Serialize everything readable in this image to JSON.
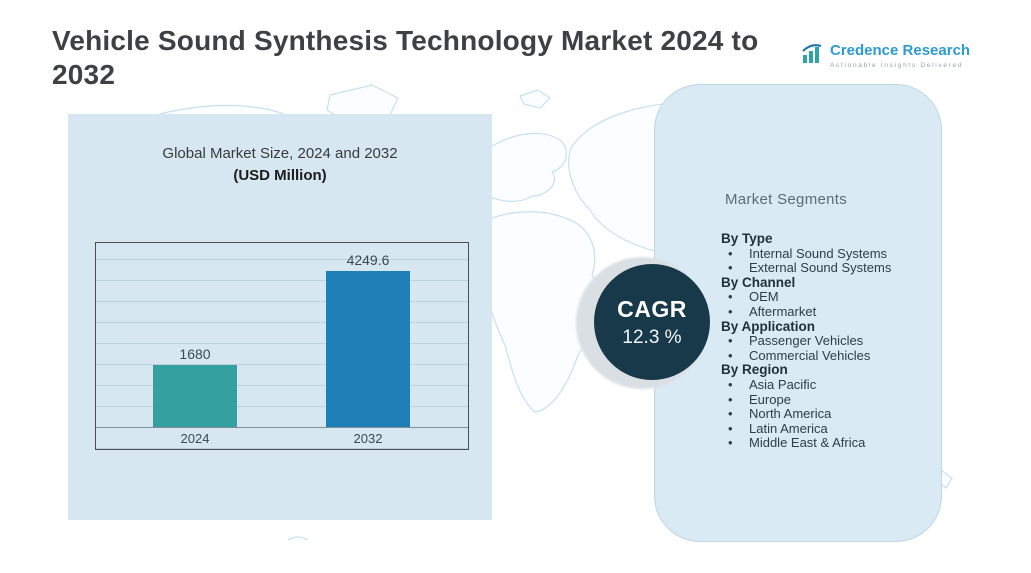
{
  "header": {
    "title": "Vehicle Sound Synthesis Technology Market  2024 to 2032",
    "brand": {
      "name": "Credence Research",
      "tagline": "Actionable Insights Delivered"
    }
  },
  "chart_data": {
    "type": "bar",
    "title": "Global Market Size, 2024 and 2032",
    "subtitle": "(USD Million)",
    "categories": [
      "2024",
      "2032"
    ],
    "values": [
      1680,
      4249.6
    ],
    "value_labels": [
      "1680",
      "4249.6"
    ],
    "ylim": [
      0,
      5000
    ],
    "bar_colors": [
      "#35A0A0",
      "#1F80B8"
    ],
    "grid": true,
    "legend": false,
    "xlabel": "",
    "ylabel": ""
  },
  "cagr": {
    "label": "CAGR",
    "value": "12.3 %"
  },
  "segments": {
    "title": "Market Segments",
    "groups": [
      {
        "label": "By Type",
        "items": [
          "Internal Sound Systems",
          "External Sound Systems"
        ]
      },
      {
        "label": "By  Channel",
        "items": [
          "OEM",
          "Aftermarket"
        ]
      },
      {
        "label": "By Application",
        "items": [
          "Passenger Vehicles",
          "Commercial Vehicles"
        ]
      },
      {
        "label": "By Region",
        "items": [
          "Asia Pacific",
          "Europe",
          "North America",
          "Latin America",
          "Middle East & Africa"
        ]
      }
    ]
  },
  "colors": {
    "chart_panel_bg": "#D6E7F1",
    "segments_panel_bg": "#D9EAF4",
    "cagr_circle": "#17394A",
    "brand_blue": "#2E9AD2",
    "title_text": "#3E4043",
    "map_line": "#C7E0EE"
  }
}
